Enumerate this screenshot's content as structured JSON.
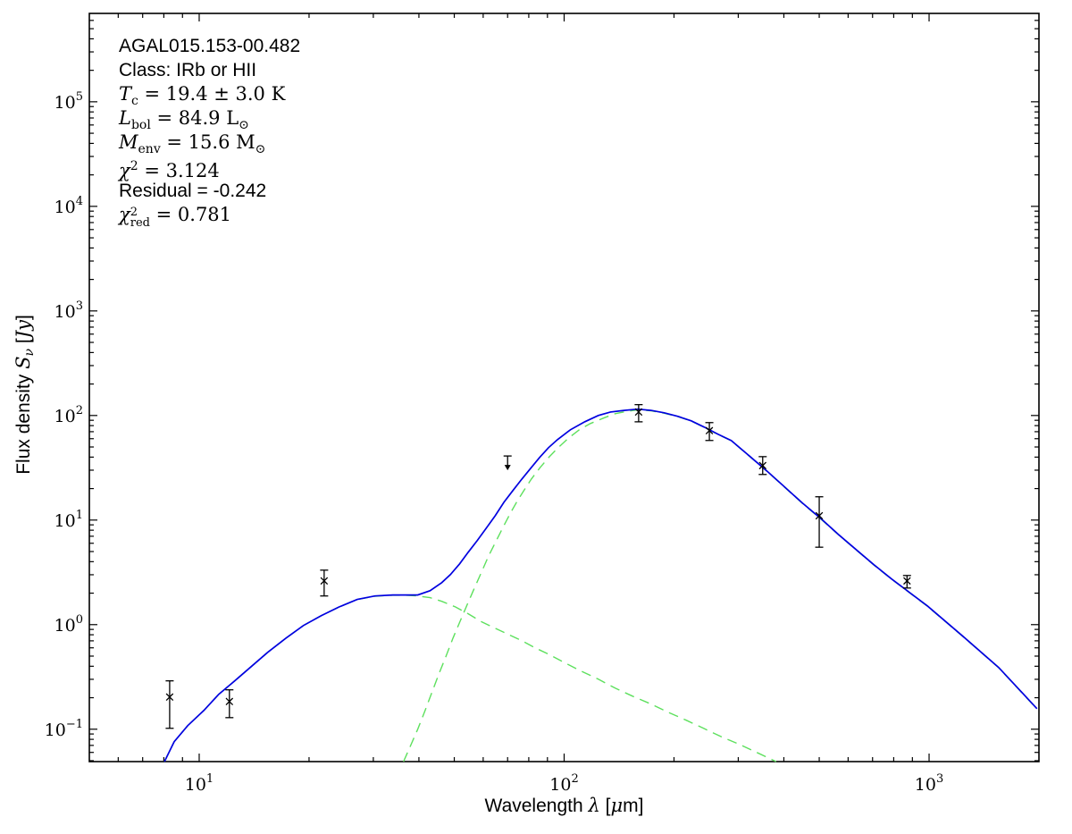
{
  "annotation": {
    "lines": [
      {
        "name": "source-name",
        "segments": [
          {
            "t": "AGAL015.153-00.482",
            "f": "sans"
          }
        ]
      },
      {
        "name": "source-class",
        "segments": [
          {
            "t": "Class: IRb or HII",
            "f": "sans"
          }
        ]
      },
      {
        "name": "cold-temperature",
        "segments": [
          {
            "t": "T",
            "f": "it"
          },
          {
            "t": "c",
            "f": "sub"
          },
          {
            "t": " = 19.4 ± 3.0 K",
            "f": "rm"
          }
        ]
      },
      {
        "name": "bolometric-luminosity",
        "segments": [
          {
            "t": "L",
            "f": "it"
          },
          {
            "t": "bol",
            "f": "sub"
          },
          {
            "t": " = 84.9 L",
            "f": "rm"
          },
          {
            "t": "⊙",
            "f": "sub"
          }
        ]
      },
      {
        "name": "envelope-mass",
        "segments": [
          {
            "t": "M",
            "f": "it"
          },
          {
            "t": "env",
            "f": "sub"
          },
          {
            "t": " = 15.6 M",
            "f": "rm"
          },
          {
            "t": "⊙",
            "f": "sub"
          }
        ]
      },
      {
        "name": "chi-square",
        "segments": [
          {
            "t": "χ",
            "f": "it"
          },
          {
            "t": "2",
            "f": "sup"
          },
          {
            "t": " = 3.124",
            "f": "rm"
          }
        ]
      },
      {
        "name": "residual",
        "segments": [
          {
            "t": "Residual = -0.242",
            "f": "sans"
          }
        ]
      },
      {
        "name": "chi-square-reduced",
        "segments": [
          {
            "t": "χ",
            "f": "it"
          },
          {
            "t": "2|red",
            "f": "stack"
          },
          {
            "t": " = 0.781",
            "f": "rm"
          }
        ]
      }
    ]
  },
  "axes": {
    "x": {
      "label_segments": [
        {
          "t": "Wavelength ",
          "f": "sans"
        },
        {
          "t": "λ",
          "f": "it"
        },
        {
          "t": " [",
          "f": "sans"
        },
        {
          "t": "μ",
          "f": "it"
        },
        {
          "t": "m]",
          "f": "sans"
        }
      ],
      "tick_base": "10",
      "tick_exponents": [
        "1",
        "2",
        "3"
      ],
      "lim": [
        5,
        2000
      ],
      "scale": "log"
    },
    "y": {
      "label_segments": [
        {
          "t": "Flux density ",
          "f": "sans"
        },
        {
          "t": "S",
          "f": "it"
        },
        {
          "t": "ν",
          "f": "subit"
        },
        {
          "t": " [",
          "f": "sans"
        },
        {
          "t": "Jy",
          "f": "it"
        },
        {
          "t": "]",
          "f": "sans"
        }
      ],
      "tick_base": "10",
      "tick_exponents": [
        "-1",
        "0",
        "1",
        "2",
        "3",
        "4",
        "5"
      ],
      "lim": [
        0.049,
        700000
      ],
      "scale": "log"
    }
  },
  "colors": {
    "model_total": "#0000e0",
    "model_components": "#5de05d",
    "data_points": "#000000",
    "frame": "#000000"
  },
  "chart_data": {
    "type": "line",
    "title": "AGAL015.153-00.482 SED fit",
    "xlabel": "Wavelength lambda [micron]",
    "ylabel": "Flux density S_nu [Jy]",
    "xlim": [
      5,
      2000
    ],
    "ylim": [
      0.049,
      700000
    ],
    "grid": false,
    "legend": "none",
    "series": [
      {
        "name": "model-total",
        "style": "solid",
        "color_key": "model_total",
        "points": [
          [
            8.03,
            0.049
          ],
          [
            8.54,
            0.076
          ],
          [
            9.3,
            0.108
          ],
          [
            10.3,
            0.151
          ],
          [
            11.3,
            0.215
          ],
          [
            12.5,
            0.289
          ],
          [
            13.8,
            0.389
          ],
          [
            15.4,
            0.543
          ],
          [
            17.3,
            0.744
          ],
          [
            19.3,
            0.98
          ],
          [
            21.6,
            1.22
          ],
          [
            24.2,
            1.48
          ],
          [
            27.1,
            1.74
          ],
          [
            30.3,
            1.88
          ],
          [
            33.9,
            1.92
          ],
          [
            36.9,
            1.92
          ],
          [
            39.7,
            1.92
          ],
          [
            42.9,
            2.11
          ],
          [
            46.2,
            2.52
          ],
          [
            48.8,
            3.01
          ],
          [
            51.7,
            3.81
          ],
          [
            54.6,
            4.92
          ],
          [
            57.8,
            6.36
          ],
          [
            61.2,
            8.38
          ],
          [
            64.7,
            11.0
          ],
          [
            68.4,
            14.8
          ],
          [
            72.4,
            19.2
          ],
          [
            76.6,
            24.7
          ],
          [
            81.0,
            31.3
          ],
          [
            85.7,
            39.7
          ],
          [
            90.6,
            49.2
          ],
          [
            95.9,
            58.8
          ],
          [
            104,
            73.0
          ],
          [
            114,
            87.1
          ],
          [
            124,
            100
          ],
          [
            134,
            108
          ],
          [
            146,
            112
          ],
          [
            159,
            115
          ],
          [
            173,
            112
          ],
          [
            188,
            106
          ],
          [
            205,
            98.0
          ],
          [
            223,
            88.9
          ],
          [
            242,
            77.4
          ],
          [
            264,
            66.2
          ],
          [
            287,
            57.6
          ],
          [
            321,
            41.3
          ],
          [
            359,
            29.5
          ],
          [
            402,
            20.7
          ],
          [
            450,
            14.5
          ],
          [
            504,
            10.4
          ],
          [
            564,
            7.3
          ],
          [
            631,
            5.22
          ],
          [
            706,
            3.74
          ],
          [
            790,
            2.73
          ],
          [
            884,
            2.03
          ],
          [
            989,
            1.51
          ],
          [
            1238,
            0.774
          ],
          [
            1551,
            0.389
          ],
          [
            1975,
            0.157
          ]
        ]
      },
      {
        "name": "component-warm",
        "style": "dashed",
        "color_key": "model_components",
        "points": [
          [
            8.03,
            0.049
          ],
          [
            8.54,
            0.076
          ],
          [
            9.3,
            0.108
          ],
          [
            10.3,
            0.151
          ],
          [
            11.3,
            0.215
          ],
          [
            12.5,
            0.289
          ],
          [
            13.8,
            0.389
          ],
          [
            15.4,
            0.543
          ],
          [
            17.3,
            0.744
          ],
          [
            19.3,
            0.98
          ],
          [
            21.6,
            1.22
          ],
          [
            24.2,
            1.48
          ],
          [
            27.1,
            1.74
          ],
          [
            30.3,
            1.87
          ],
          [
            33.9,
            1.91
          ],
          [
            36.9,
            1.91
          ],
          [
            39.7,
            1.88
          ],
          [
            42.9,
            1.81
          ],
          [
            46.2,
            1.67
          ],
          [
            50.3,
            1.48
          ],
          [
            54.6,
            1.27
          ],
          [
            59.5,
            1.06
          ],
          [
            64.7,
            0.924
          ],
          [
            70.4,
            0.805
          ],
          [
            76.6,
            0.702
          ],
          [
            83.3,
            0.599
          ],
          [
            90.6,
            0.522
          ],
          [
            98.6,
            0.446
          ],
          [
            110,
            0.367
          ],
          [
            124,
            0.301
          ],
          [
            138,
            0.247
          ],
          [
            154,
            0.207
          ],
          [
            173,
            0.174
          ],
          [
            193,
            0.145
          ],
          [
            216,
            0.122
          ],
          [
            241,
            0.102
          ],
          [
            269,
            0.085
          ],
          [
            301,
            0.072
          ],
          [
            337,
            0.06
          ],
          [
            381,
            0.049
          ]
        ]
      },
      {
        "name": "component-cold",
        "style": "dashed",
        "color_key": "model_components",
        "points": [
          [
            36.3,
            0.049
          ],
          [
            37.9,
            0.069
          ],
          [
            39.7,
            0.1
          ],
          [
            41.5,
            0.148
          ],
          [
            43.4,
            0.224
          ],
          [
            45.4,
            0.339
          ],
          [
            47.5,
            0.502
          ],
          [
            49.6,
            0.744
          ],
          [
            51.9,
            1.08
          ],
          [
            54.3,
            1.57
          ],
          [
            56.8,
            2.24
          ],
          [
            59.4,
            3.19
          ],
          [
            62.1,
            4.55
          ],
          [
            65.0,
            6.24
          ],
          [
            68.0,
            8.54
          ],
          [
            71.1,
            11.5
          ],
          [
            74.3,
            15.1
          ],
          [
            77.8,
            19.5
          ],
          [
            81.3,
            24.7
          ],
          [
            86.0,
            31.9
          ],
          [
            91.1,
            40.4
          ],
          [
            96.3,
            49.2
          ],
          [
            103,
            61.1
          ],
          [
            110,
            73.0
          ],
          [
            118,
            83.8
          ],
          [
            128,
            94.3
          ],
          [
            138,
            104
          ],
          [
            149,
            110
          ],
          [
            159,
            113
          ],
          [
            173,
            111
          ],
          [
            188,
            105
          ],
          [
            205,
            97.5
          ],
          [
            223,
            88.5
          ],
          [
            242,
            77.0
          ],
          [
            264,
            65.9
          ],
          [
            287,
            57.3
          ],
          [
            321,
            41.1
          ],
          [
            359,
            29.4
          ],
          [
            402,
            20.6
          ],
          [
            450,
            14.4
          ],
          [
            504,
            10.3
          ],
          [
            564,
            7.25
          ],
          [
            631,
            5.19
          ],
          [
            706,
            3.71
          ],
          [
            790,
            2.71
          ],
          [
            884,
            2.02
          ],
          [
            989,
            1.5
          ],
          [
            1238,
            0.77
          ],
          [
            1551,
            0.387
          ],
          [
            1975,
            0.156
          ]
        ]
      }
    ],
    "data_points": [
      {
        "lam": 8.3,
        "flux": 0.203,
        "err_lo": 0.102,
        "err_hi": 0.29
      },
      {
        "lam": 12.1,
        "flux": 0.184,
        "err_lo": 0.129,
        "err_hi": 0.238
      },
      {
        "lam": 22,
        "flux": 2.62,
        "err_lo": 1.88,
        "err_hi": 3.32
      },
      {
        "lam": 160,
        "flux": 108,
        "err_lo": 87,
        "err_hi": 127
      },
      {
        "lam": 250,
        "flux": 71.6,
        "err_lo": 57.7,
        "err_hi": 85.5
      },
      {
        "lam": 350,
        "flux": 33.2,
        "err_lo": 27.3,
        "err_hi": 40.4
      },
      {
        "lam": 500,
        "flux": 11.0,
        "err_lo": 5.5,
        "err_hi": 16.7
      },
      {
        "lam": 870,
        "flux": 2.62,
        "err_lo": 2.24,
        "err_hi": 2.95
      }
    ],
    "upper_limits": [
      {
        "lam": 70,
        "flux": 41
      }
    ]
  }
}
